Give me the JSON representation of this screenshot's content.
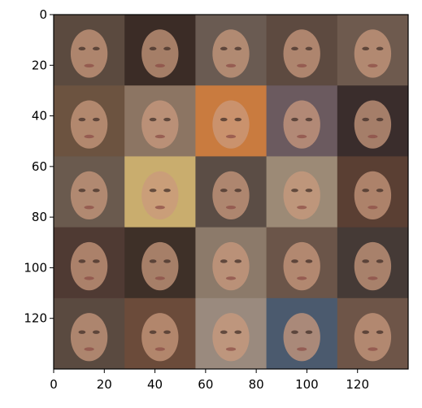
{
  "chart_data": {
    "type": "image",
    "title": "",
    "xlabel": "",
    "ylabel": "",
    "xlim": [
      0,
      140
    ],
    "ylim": [
      140,
      0
    ],
    "x_ticks": [
      0,
      20,
      40,
      60,
      80,
      100,
      120
    ],
    "y_ticks": [
      0,
      20,
      40,
      60,
      80,
      100,
      120
    ],
    "grid_rows": 5,
    "grid_cols": 5,
    "tile_size_px": 28,
    "image_description": "Grid of 25 blurry GAN-generated face thumbnails",
    "tiles": [
      [
        "#5b4a3f",
        "#3b2c26",
        "#6a5b52",
        "#5d4a40",
        "#6e5a4e"
      ],
      [
        "#6c5340",
        "#8c7563",
        "#c97b3f",
        "#6b5a5f",
        "#3a2d2c"
      ],
      [
        "#6a5a4e",
        "#c9ad6e",
        "#5b4d45",
        "#9c8a76",
        "#5a3f33"
      ],
      [
        "#4f3a33",
        "#3e3028",
        "#8c7a6a",
        "#6b5549",
        "#453a36"
      ],
      [
        "#5a4a40",
        "#6b4b3a",
        "#9a8a7e",
        "#4b5a6e",
        "#6e5548"
      ]
    ]
  }
}
